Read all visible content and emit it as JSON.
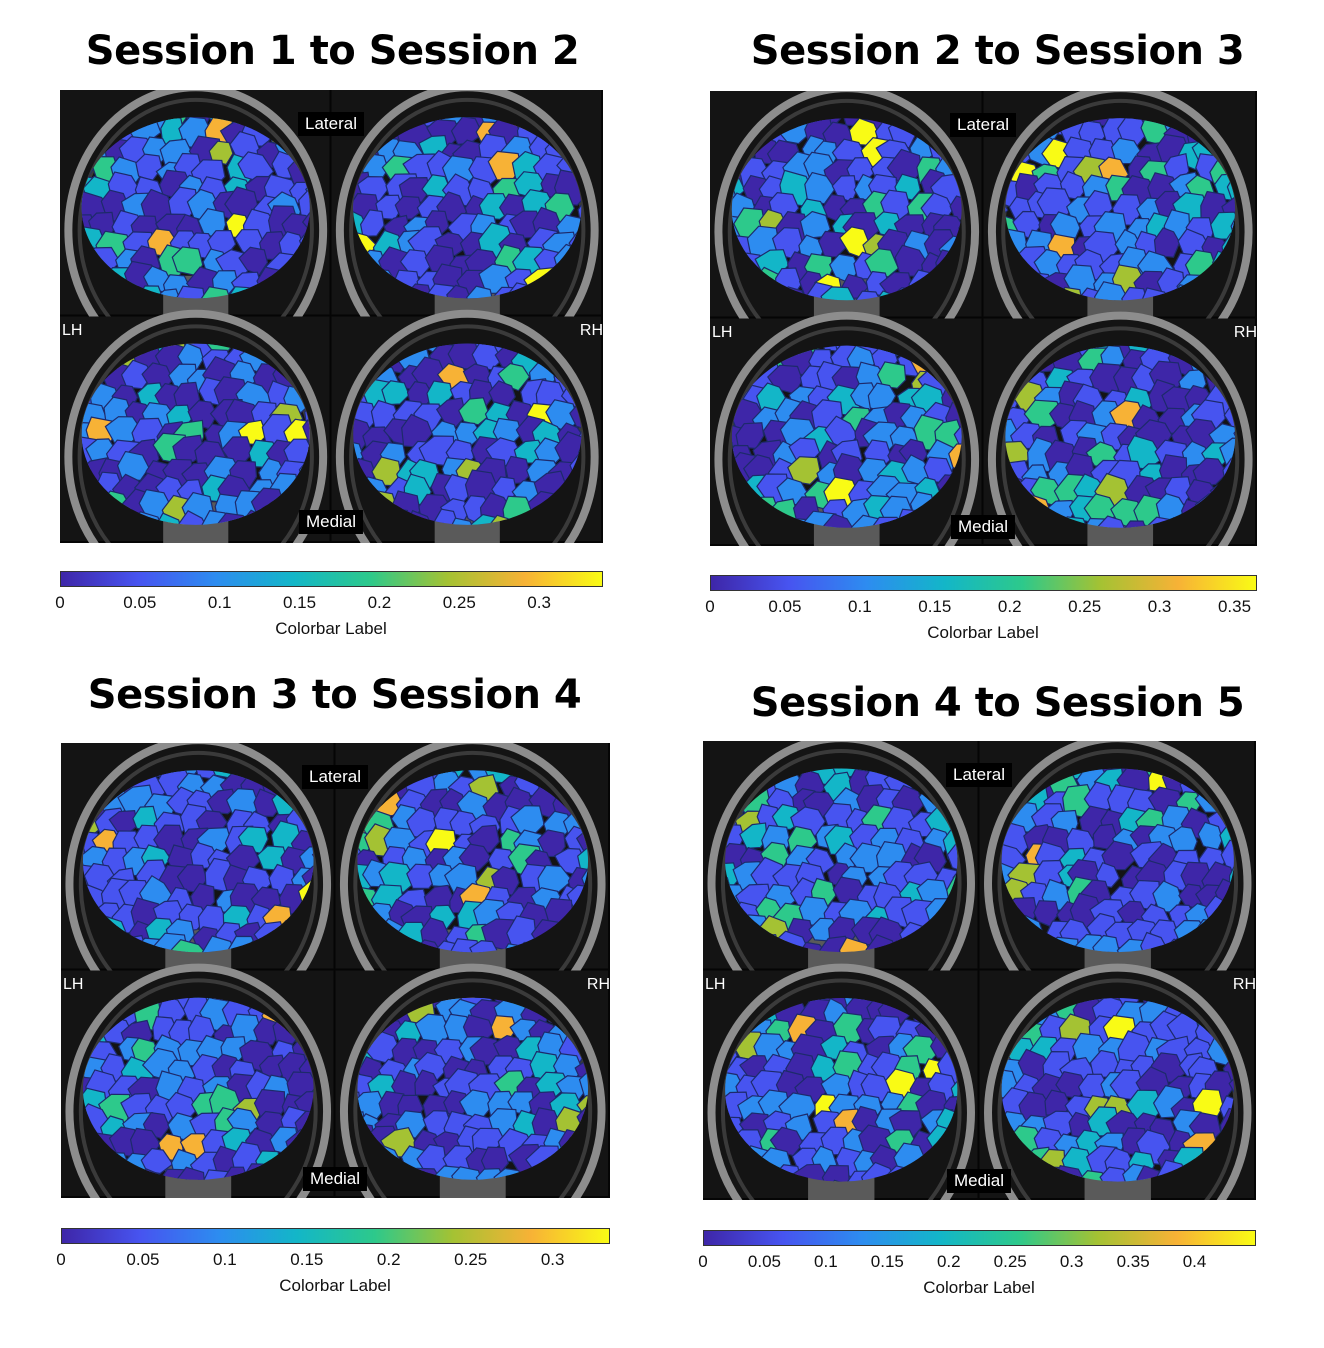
{
  "labels": {
    "lateral": "Lateral",
    "medial": "Medial",
    "lh": "LH",
    "rh": "RH",
    "colorbar_label": "Colorbar Label"
  },
  "colormap": [
    "#3e26a8",
    "#4754f0",
    "#2d8cf0",
    "#13b6c8",
    "#2dc98b",
    "#a4c233",
    "#f7b236",
    "#f9fb15"
  ],
  "panels": [
    {
      "title": "Session 1 to Session 2",
      "colorbar": {
        "min": 0,
        "max": 0.34,
        "ticks": [
          "0",
          "0.05",
          "0.1",
          "0.15",
          "0.2",
          "0.25",
          "0.3"
        ]
      }
    },
    {
      "title": "Session 2 to Session 3",
      "colorbar": {
        "min": 0,
        "max": 0.365,
        "ticks": [
          "0",
          "0.05",
          "0.1",
          "0.15",
          "0.2",
          "0.25",
          "0.3",
          "0.35"
        ]
      }
    },
    {
      "title": "Session 3 to Session 4",
      "colorbar": {
        "min": 0,
        "max": 0.335,
        "ticks": [
          "0",
          "0.05",
          "0.1",
          "0.15",
          "0.2",
          "0.25",
          "0.3"
        ]
      }
    },
    {
      "title": "Session 4 to Session 5",
      "colorbar": {
        "min": 0,
        "max": 0.45,
        "ticks": [
          "0",
          "0.05",
          "0.1",
          "0.15",
          "0.2",
          "0.25",
          "0.3",
          "0.35",
          "0.4"
        ]
      }
    }
  ]
}
